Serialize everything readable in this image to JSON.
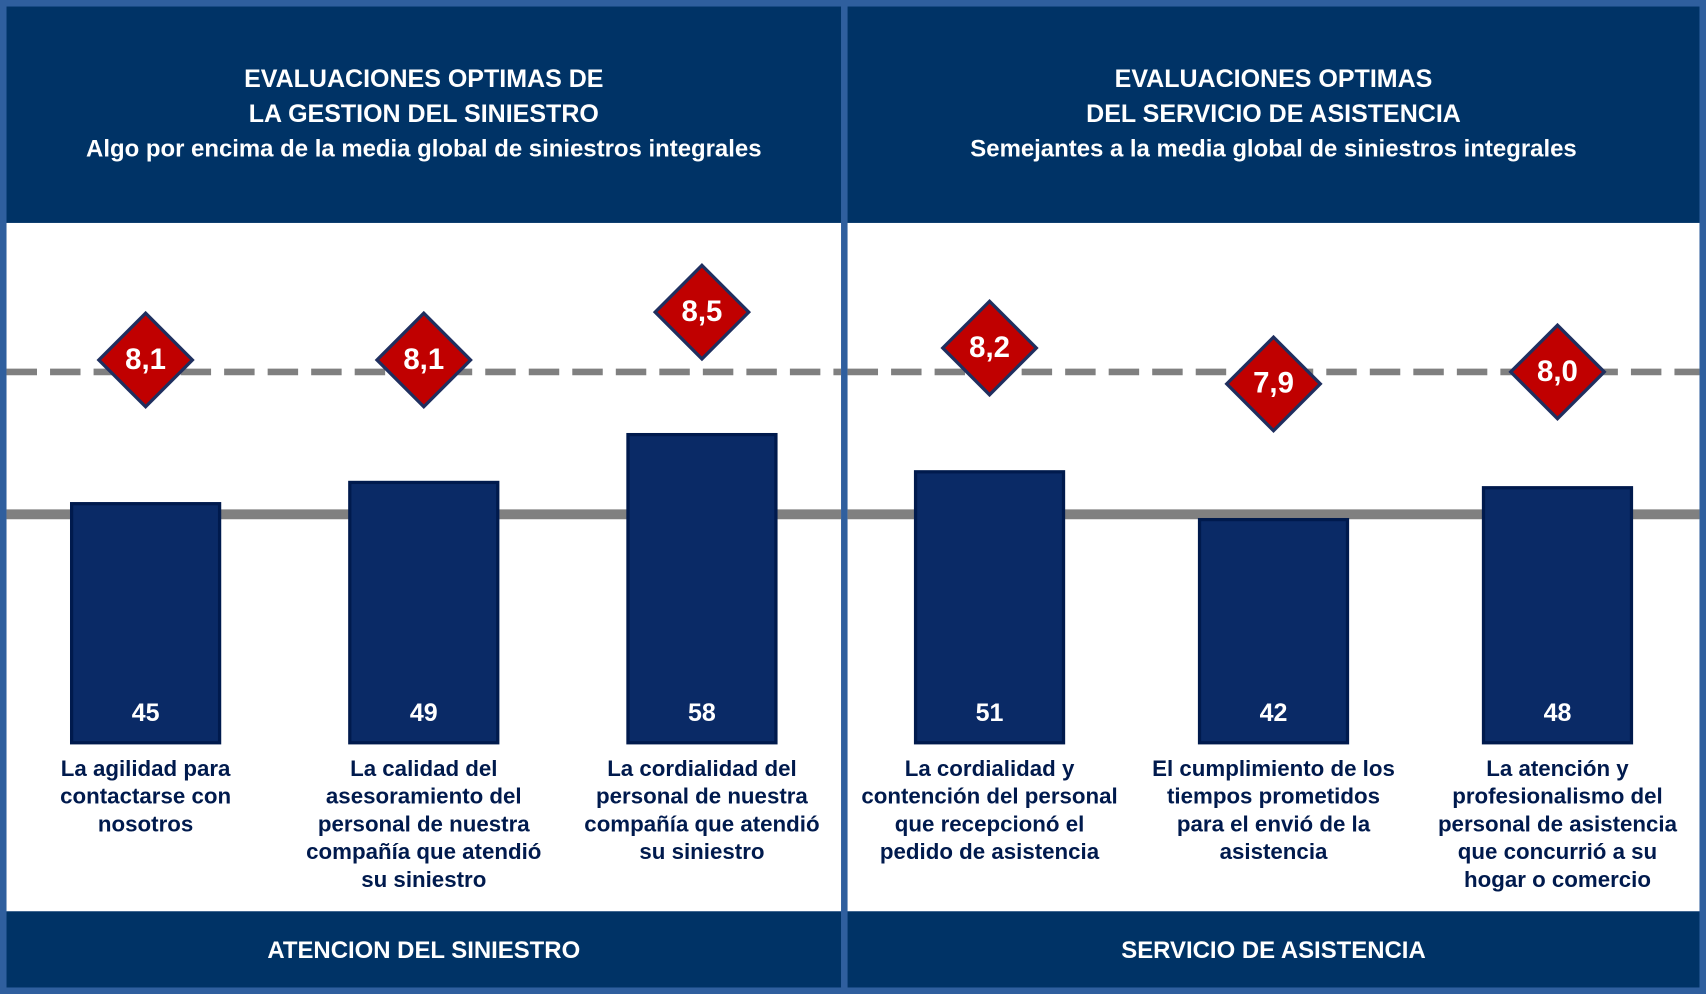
{
  "chart_data": [
    {
      "type": "bar",
      "title": [
        "EVALUACIONES OPTIMAS DE",
        "LA GESTION DEL SINIESTRO"
      ],
      "subtitle": "Algo por encima de la media global de siniestros integrales",
      "footer": "ATENCION DEL SINIESTRO",
      "categories": [
        [
          "La agilidad para",
          "contactarse con",
          "nosotros"
        ],
        [
          "La calidad del",
          "asesoramiento del",
          "personal de nuestra",
          "compañía que atendió",
          "su siniestro"
        ],
        [
          "La cordialidad del",
          "personal de nuestra",
          "compañía que atendió",
          "su siniestro"
        ]
      ],
      "values": [
        45,
        49,
        58
      ],
      "color": "#0a2a66",
      "ylim": [
        0,
        70
      ],
      "mean_value": 43,
      "scores": [
        8.1,
        8.1,
        8.5
      ],
      "score_labels": [
        "8,1",
        "8,1",
        "8,5"
      ],
      "score_color": "#c00000",
      "y2lim": [
        7,
        9
      ],
      "mean_score": 8.0
    },
    {
      "type": "bar",
      "title": [
        "EVALUACIONES OPTIMAS",
        "DEL SERVICIO DE ASISTENCIA"
      ],
      "subtitle": "Semejantes a la media global de siniestros integrales",
      "footer": "SERVICIO DE ASISTENCIA",
      "categories": [
        [
          "La cordialidad y",
          "contención del personal",
          "que recepcionó el",
          "pedido de asistencia"
        ],
        [
          "El cumplimiento de los",
          "tiempos prometidos",
          "para el envió de la",
          "asistencia"
        ],
        [
          "La atención y",
          "profesionalismo del",
          "personal de asistencia",
          "que concurrió a su",
          "hogar o comercio"
        ]
      ],
      "values": [
        51,
        42,
        48
      ],
      "color": "#0a2a66",
      "ylim": [
        0,
        70
      ],
      "mean_value": 43,
      "scores": [
        8.2,
        7.9,
        8.0
      ],
      "score_labels": [
        "8,2",
        "7,9",
        "8,0"
      ],
      "score_color": "#c00000",
      "y2lim": [
        7,
        9
      ],
      "mean_score": 8.0
    }
  ]
}
